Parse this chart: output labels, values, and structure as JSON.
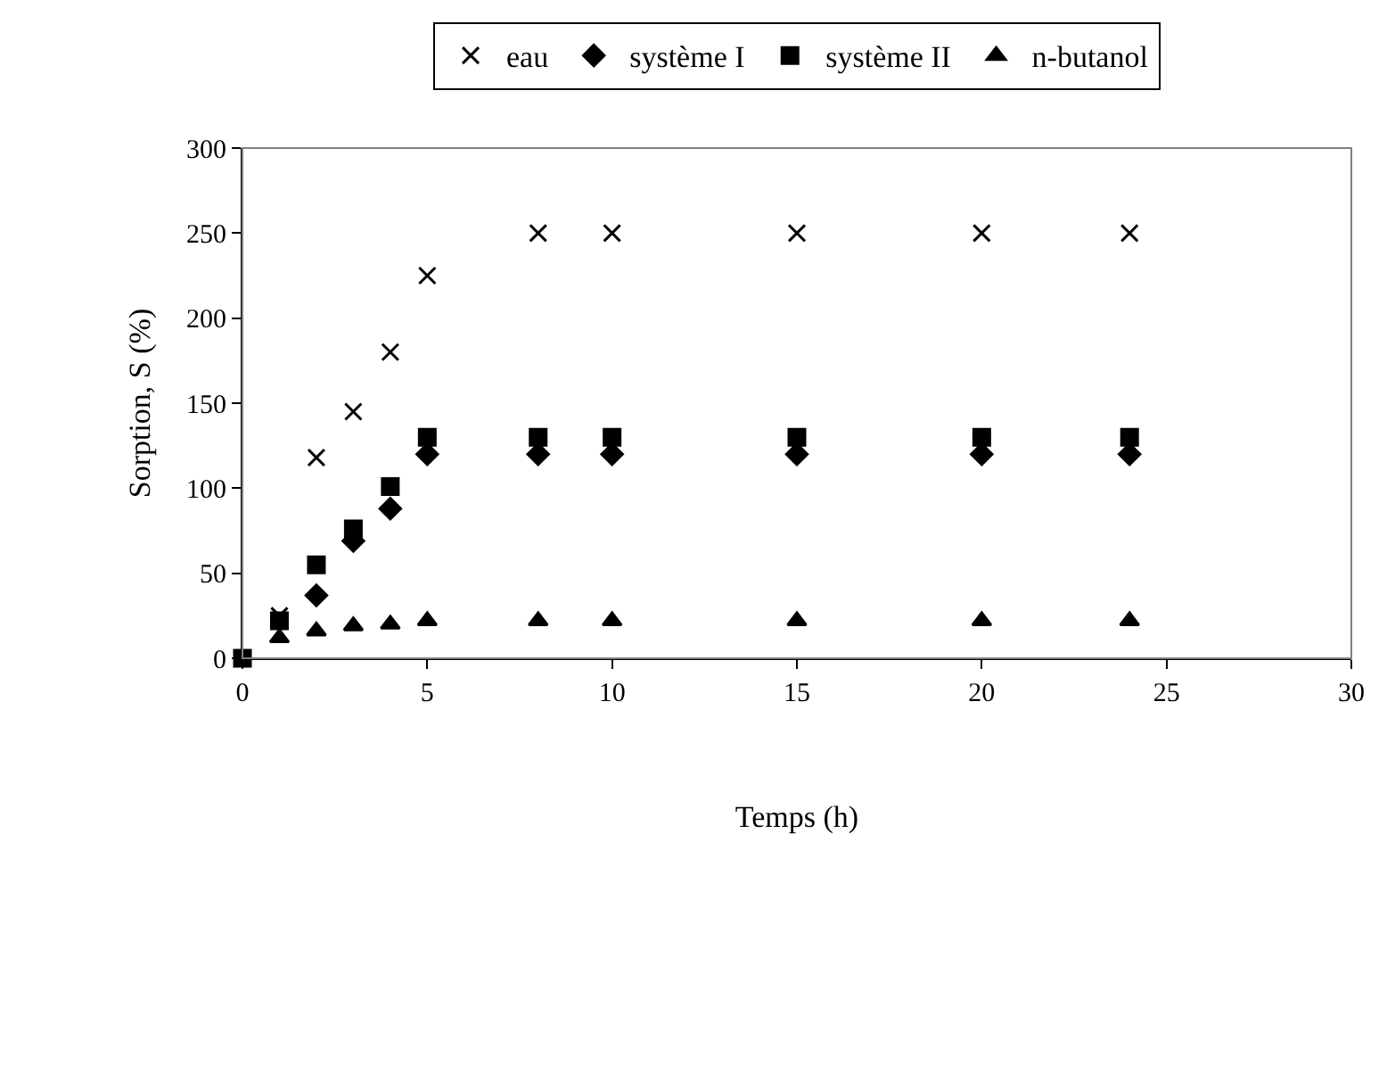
{
  "chart_data": {
    "type": "scatter",
    "xlabel": "Temps (h)",
    "ylabel": "Sorption, S (%)",
    "x": [
      0,
      1,
      2,
      3,
      4,
      5,
      8,
      10,
      15,
      20,
      24
    ],
    "series": [
      {
        "name": "eau",
        "color": "#000000",
        "marker": "cross",
        "values": [
          null,
          25,
          118,
          145,
          180,
          225,
          250,
          250,
          250,
          250,
          250
        ]
      },
      {
        "name": "système I",
        "color": "#000000",
        "marker": "diamond",
        "values": [
          null,
          null,
          37,
          69,
          88,
          120,
          120,
          120,
          120,
          120,
          120
        ]
      },
      {
        "name": "système II",
        "color": "#000000",
        "marker": "square",
        "values": [
          0,
          22,
          55,
          76,
          101,
          130,
          130,
          130,
          130,
          130,
          130
        ]
      },
      {
        "name": "n-butanol",
        "color": "#000000",
        "marker": "triangle",
        "values": [
          null,
          12,
          16,
          19,
          20,
          22,
          22,
          22,
          22,
          22,
          22
        ]
      }
    ],
    "xlim": [
      0,
      30
    ],
    "xticks": [
      0,
      5,
      10,
      15,
      20,
      25,
      30
    ],
    "ylim": [
      0,
      300
    ],
    "yticks": [
      0,
      50,
      100,
      150,
      200,
      250,
      300
    ],
    "legend": "top"
  }
}
